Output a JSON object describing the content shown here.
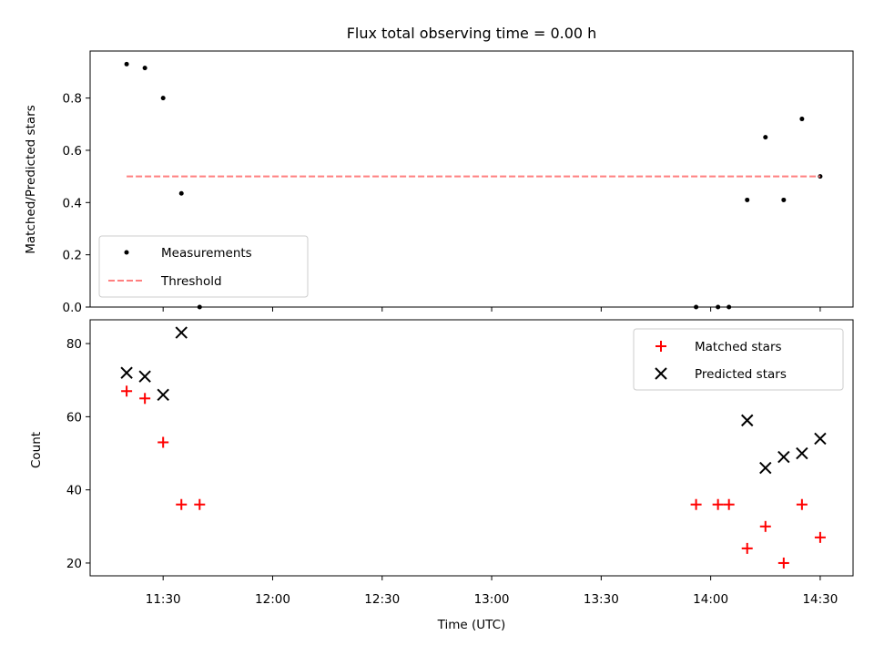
{
  "chart_data": [
    {
      "type": "scatter",
      "title": "Flux total observing time = 0.00 h",
      "ylabel": "Matched/Predicted stars",
      "xlabel": "",
      "xlim": [
        "11:10",
        "14:39"
      ],
      "ylim": [
        0,
        0.98
      ],
      "x_ticks": [
        "11:30",
        "12:00",
        "12:30",
        "13:00",
        "13:30",
        "14:00",
        "14:30"
      ],
      "y_ticks": [
        "0.0",
        "0.2",
        "0.4",
        "0.6",
        "0.8"
      ],
      "y_tick_values": [
        0,
        0.2,
        0.4,
        0.6,
        0.8
      ],
      "legend_position": "lower left",
      "series": [
        {
          "name": "Measurements",
          "marker": "dot",
          "color": "#000000",
          "points": [
            [
              "11:20",
              0.93
            ],
            [
              "11:25",
              0.915
            ],
            [
              "11:30",
              0.8
            ],
            [
              "11:35",
              0.435
            ],
            [
              "11:40",
              0.0
            ],
            [
              "13:56",
              0.0
            ],
            [
              "14:02",
              0.0
            ],
            [
              "14:05",
              0.0
            ],
            [
              "14:10",
              0.41
            ],
            [
              "14:15",
              0.65
            ],
            [
              "14:20",
              0.41
            ],
            [
              "14:25",
              0.72
            ],
            [
              "14:30",
              0.5
            ]
          ]
        },
        {
          "name": "Threshold",
          "style": "dashed-line",
          "color": "#ff7f7f",
          "points": [
            [
              "11:20",
              0.5
            ],
            [
              "14:30",
              0.5
            ]
          ]
        }
      ]
    },
    {
      "type": "scatter",
      "title": "",
      "ylabel": "Count",
      "xlabel": "Time (UTC)",
      "xlim": [
        "11:10",
        "14:39"
      ],
      "ylim": [
        16.5,
        86.5
      ],
      "x_ticks": [
        "11:30",
        "12:00",
        "12:30",
        "13:00",
        "13:30",
        "14:00",
        "14:30"
      ],
      "y_ticks": [
        "20",
        "40",
        "60",
        "80"
      ],
      "y_tick_values": [
        20,
        40,
        60,
        80
      ],
      "legend_position": "upper right",
      "series": [
        {
          "name": "Matched stars",
          "marker": "plus",
          "color": "#ff0000",
          "points": [
            [
              "11:20",
              67
            ],
            [
              "11:25",
              65
            ],
            [
              "11:30",
              53
            ],
            [
              "11:35",
              36
            ],
            [
              "11:40",
              36
            ],
            [
              "13:56",
              36
            ],
            [
              "14:02",
              36
            ],
            [
              "14:05",
              36
            ],
            [
              "14:10",
              24
            ],
            [
              "14:15",
              30
            ],
            [
              "14:20",
              20
            ],
            [
              "14:25",
              36
            ],
            [
              "14:30",
              27
            ]
          ]
        },
        {
          "name": "Predicted stars",
          "marker": "x",
          "color": "#000000",
          "points": [
            [
              "11:20",
              72
            ],
            [
              "11:25",
              71
            ],
            [
              "11:30",
              66
            ],
            [
              "11:35",
              83
            ],
            [
              "14:10",
              59
            ],
            [
              "14:15",
              46
            ],
            [
              "14:20",
              49
            ],
            [
              "14:25",
              50
            ],
            [
              "14:30",
              54
            ]
          ]
        }
      ]
    }
  ]
}
